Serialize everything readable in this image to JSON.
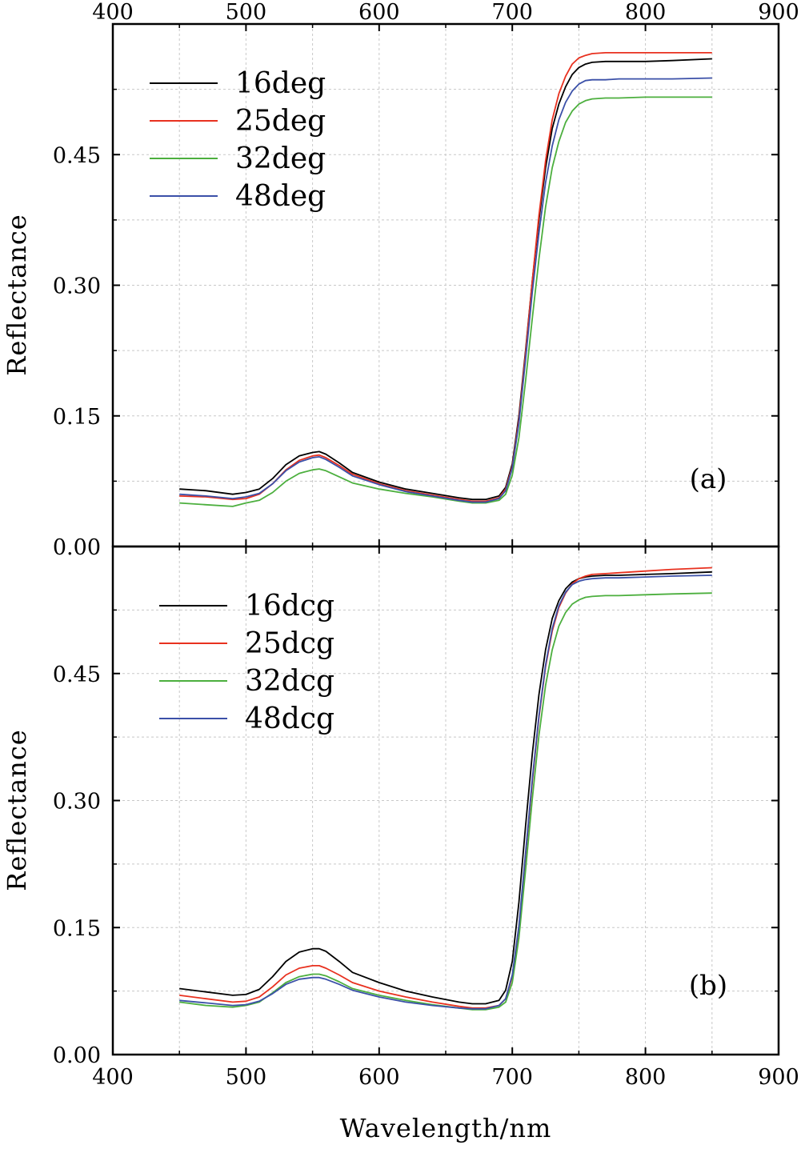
{
  "chart_data": [
    {
      "type": "line",
      "panel_label": "(a)",
      "xlabel": "",
      "ylabel": "Reflectance",
      "xlim": [
        400,
        900
      ],
      "ylim": [
        0,
        0.6
      ],
      "x_ticks": [
        400,
        500,
        600,
        700,
        800,
        900
      ],
      "x_tick_labels": [
        "400",
        "500",
        "600",
        "700",
        "800",
        "900"
      ],
      "x_tick_labels_position": "top",
      "y_ticks": [
        0,
        0.15,
        0.3,
        0.45
      ],
      "y_tick_labels": [
        "0.00",
        "0.15",
        "0.30",
        "0.45"
      ],
      "grid": true,
      "legend": "top-left",
      "x": [
        450,
        470,
        490,
        500,
        510,
        520,
        530,
        540,
        550,
        555,
        560,
        570,
        580,
        600,
        620,
        640,
        660,
        670,
        680,
        690,
        695,
        700,
        705,
        710,
        715,
        720,
        725,
        730,
        735,
        740,
        745,
        750,
        755,
        760,
        770,
        780,
        800,
        820,
        850
      ],
      "series": [
        {
          "name": "16deg",
          "color": "#000000",
          "values": [
            0.066,
            0.064,
            0.06,
            0.062,
            0.066,
            0.078,
            0.094,
            0.104,
            0.108,
            0.109,
            0.106,
            0.096,
            0.085,
            0.074,
            0.066,
            0.061,
            0.056,
            0.054,
            0.054,
            0.058,
            0.068,
            0.095,
            0.15,
            0.225,
            0.305,
            0.375,
            0.435,
            0.48,
            0.508,
            0.528,
            0.542,
            0.55,
            0.554,
            0.556,
            0.557,
            0.557,
            0.557,
            0.558,
            0.56
          ]
        },
        {
          "name": "25deg",
          "color": "#e8311f",
          "values": [
            0.058,
            0.057,
            0.054,
            0.055,
            0.06,
            0.072,
            0.088,
            0.099,
            0.104,
            0.105,
            0.102,
            0.093,
            0.083,
            0.072,
            0.064,
            0.059,
            0.054,
            0.052,
            0.052,
            0.056,
            0.066,
            0.092,
            0.146,
            0.222,
            0.305,
            0.38,
            0.443,
            0.49,
            0.52,
            0.54,
            0.554,
            0.561,
            0.564,
            0.566,
            0.567,
            0.567,
            0.567,
            0.567,
            0.567
          ]
        },
        {
          "name": "32deg",
          "color": "#4caf3e",
          "values": [
            0.05,
            0.048,
            0.046,
            0.05,
            0.053,
            0.062,
            0.075,
            0.084,
            0.088,
            0.089,
            0.087,
            0.08,
            0.073,
            0.066,
            0.061,
            0.057,
            0.052,
            0.05,
            0.05,
            0.053,
            0.06,
            0.082,
            0.125,
            0.19,
            0.262,
            0.33,
            0.39,
            0.435,
            0.465,
            0.487,
            0.5,
            0.508,
            0.512,
            0.514,
            0.515,
            0.515,
            0.516,
            0.516,
            0.516
          ]
        },
        {
          "name": "48deg",
          "color": "#3b50a8",
          "values": [
            0.06,
            0.058,
            0.055,
            0.057,
            0.061,
            0.072,
            0.087,
            0.097,
            0.102,
            0.103,
            0.1,
            0.091,
            0.081,
            0.071,
            0.063,
            0.058,
            0.053,
            0.051,
            0.051,
            0.055,
            0.064,
            0.09,
            0.142,
            0.215,
            0.292,
            0.36,
            0.418,
            0.46,
            0.49,
            0.51,
            0.523,
            0.531,
            0.535,
            0.536,
            0.536,
            0.537,
            0.537,
            0.537,
            0.538
          ]
        }
      ]
    },
    {
      "type": "line",
      "panel_label": "(b)",
      "xlabel": "Wavelength/nm",
      "ylabel": "Reflectance",
      "xlim": [
        400,
        900
      ],
      "ylim": [
        0,
        0.6
      ],
      "x_ticks": [
        400,
        500,
        600,
        700,
        800,
        900
      ],
      "x_tick_labels": [
        "400",
        "500",
        "600",
        "700",
        "800",
        "900"
      ],
      "x_tick_labels_position": "bottom",
      "y_ticks": [
        0,
        0.15,
        0.3,
        0.45
      ],
      "y_tick_labels": [
        "0.00",
        "0.15",
        "0.30",
        "0.45"
      ],
      "grid": true,
      "legend": "top-left",
      "x": [
        450,
        470,
        490,
        500,
        510,
        520,
        530,
        540,
        550,
        555,
        560,
        570,
        580,
        600,
        620,
        640,
        660,
        670,
        680,
        690,
        695,
        700,
        705,
        710,
        715,
        720,
        725,
        730,
        735,
        740,
        745,
        750,
        755,
        760,
        770,
        780,
        800,
        820,
        850
      ],
      "series": [
        {
          "name": "16dcg",
          "color": "#000000",
          "values": [
            0.078,
            0.074,
            0.07,
            0.071,
            0.077,
            0.092,
            0.11,
            0.121,
            0.125,
            0.125,
            0.122,
            0.11,
            0.097,
            0.085,
            0.075,
            0.068,
            0.062,
            0.06,
            0.06,
            0.064,
            0.076,
            0.11,
            0.18,
            0.27,
            0.355,
            0.425,
            0.478,
            0.515,
            0.536,
            0.55,
            0.558,
            0.562,
            0.564,
            0.565,
            0.566,
            0.566,
            0.567,
            0.568,
            0.57
          ]
        },
        {
          "name": "25dcg",
          "color": "#e8311f",
          "values": [
            0.07,
            0.066,
            0.062,
            0.063,
            0.068,
            0.08,
            0.094,
            0.102,
            0.105,
            0.105,
            0.102,
            0.094,
            0.085,
            0.075,
            0.068,
            0.062,
            0.057,
            0.055,
            0.055,
            0.058,
            0.066,
            0.092,
            0.15,
            0.235,
            0.322,
            0.398,
            0.458,
            0.5,
            0.528,
            0.545,
            0.556,
            0.562,
            0.565,
            0.567,
            0.568,
            0.569,
            0.571,
            0.573,
            0.575
          ]
        },
        {
          "name": "32dcg",
          "color": "#4caf3e",
          "values": [
            0.062,
            0.058,
            0.056,
            0.058,
            0.062,
            0.073,
            0.085,
            0.092,
            0.095,
            0.095,
            0.093,
            0.086,
            0.078,
            0.07,
            0.064,
            0.059,
            0.055,
            0.053,
            0.053,
            0.056,
            0.062,
            0.085,
            0.138,
            0.218,
            0.302,
            0.377,
            0.436,
            0.478,
            0.506,
            0.522,
            0.532,
            0.537,
            0.54,
            0.541,
            0.542,
            0.542,
            0.543,
            0.544,
            0.545
          ]
        },
        {
          "name": "48dcg",
          "color": "#3b50a8",
          "values": [
            0.064,
            0.061,
            0.058,
            0.059,
            0.063,
            0.072,
            0.083,
            0.089,
            0.091,
            0.091,
            0.089,
            0.083,
            0.076,
            0.068,
            0.062,
            0.058,
            0.055,
            0.054,
            0.054,
            0.058,
            0.066,
            0.094,
            0.152,
            0.238,
            0.325,
            0.4,
            0.46,
            0.503,
            0.53,
            0.546,
            0.555,
            0.559,
            0.561,
            0.562,
            0.563,
            0.563,
            0.564,
            0.565,
            0.566
          ]
        }
      ]
    }
  ]
}
